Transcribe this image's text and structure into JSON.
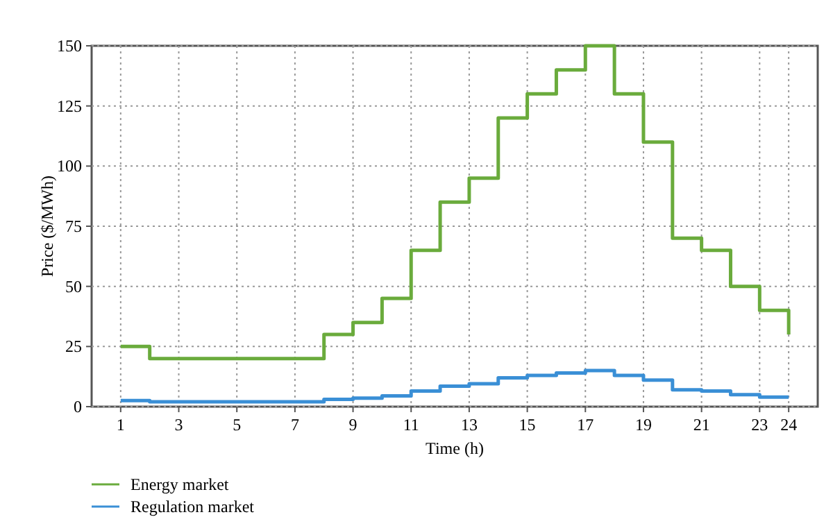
{
  "chart_data": {
    "type": "step",
    "xlabel": "Time (h)",
    "ylabel": "Price ($/MWh)",
    "x": [
      1,
      2,
      3,
      4,
      5,
      6,
      7,
      8,
      9,
      10,
      11,
      12,
      13,
      14,
      15,
      16,
      17,
      18,
      19,
      20,
      21,
      22,
      23,
      24
    ],
    "series": [
      {
        "name": "Energy market",
        "color": "#6aab3c",
        "values": [
          25,
          20,
          20,
          20,
          20,
          20,
          20,
          30,
          35,
          45,
          65,
          85,
          95,
          120,
          130,
          140,
          150,
          130,
          110,
          70,
          65,
          50,
          40,
          30
        ]
      },
      {
        "name": "Regulation market",
        "color": "#3a8fd6",
        "values": [
          2.5,
          2,
          2,
          2,
          2,
          2,
          2,
          3,
          3.5,
          4.5,
          6.5,
          8.5,
          9.5,
          12,
          13,
          14,
          15,
          13,
          11,
          7,
          6.5,
          5,
          4,
          4
        ]
      }
    ],
    "xlim": [
      0,
      25
    ],
    "xticks": [
      1,
      3,
      5,
      7,
      9,
      11,
      13,
      15,
      17,
      19,
      21,
      23,
      24
    ],
    "ylim": [
      0,
      150
    ],
    "yticks": [
      0,
      25,
      50,
      75,
      100,
      125,
      150
    ],
    "grid": true,
    "legend": "bottom left",
    "line_style": "solid",
    "marker": "none"
  }
}
